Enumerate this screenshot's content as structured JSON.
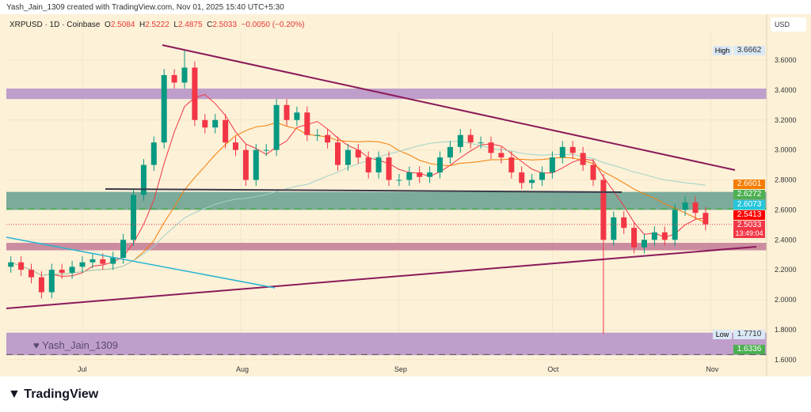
{
  "header": {
    "credit": "Yash_Jain_1309 created with TradingView.com, Nov 01, 2025 15:40 UTC+5:30"
  },
  "legend": {
    "symbol": "XRPUSD · 1D · Coinbase",
    "o_label": "O",
    "o": "2.5084",
    "h_label": "H",
    "h": "2.5222",
    "l_label": "L",
    "l": "2.4875",
    "c_label": "C",
    "c": "2.5033",
    "change": "−0.0050 (−0.20%)"
  },
  "currency": "USD",
  "watermark": "Yash_Jain_1309",
  "brand": "TradingView",
  "price_tags": {
    "high_label": "High",
    "high": "3.6662",
    "low_label": "Low",
    "low": "1.7710",
    "t1": "2.6601",
    "t2": "2.6272",
    "t3": "2.6073",
    "t4": "2.5413",
    "last": "2.5033",
    "countdown": "13:49:04",
    "bottom": "1.6336"
  },
  "colors": {
    "up": "#089981",
    "down": "#f23645",
    "orange": "#f57c00",
    "green": "#4caf50",
    "cyan": "#26c6da",
    "red": "#ff0000"
  },
  "chart_data": {
    "type": "candlestick",
    "ylim": [
      1.6,
      3.75
    ],
    "y_ticks": [
      "3.6000",
      "3.4000",
      "3.2000",
      "3.0000",
      "2.8000",
      "2.6000",
      "2.4000",
      "2.2000",
      "2.0000",
      "1.8000",
      "1.6000"
    ],
    "x_ticks": [
      "Jul",
      "Aug",
      "Sep",
      "Oct",
      "Nov"
    ],
    "grid": true,
    "x_start": "2025-06-17",
    "step_days": 2,
    "closes": [
      2.25,
      2.2,
      2.15,
      2.05,
      2.2,
      2.18,
      2.22,
      2.25,
      2.27,
      2.24,
      2.28,
      2.4,
      2.7,
      2.9,
      3.05,
      3.5,
      3.45,
      3.55,
      3.2,
      3.15,
      3.2,
      3.05,
      3.0,
      2.8,
      3.0,
      3.0,
      3.3,
      3.2,
      3.25,
      3.1,
      3.1,
      3.05,
      2.9,
      3.0,
      2.95,
      2.85,
      2.95,
      2.8,
      2.8,
      2.85,
      2.82,
      2.85,
      2.95,
      3.02,
      3.1,
      3.05,
      3.05,
      2.98,
      2.95,
      2.85,
      2.78,
      2.8,
      2.85,
      2.95,
      3.02,
      2.98,
      2.9,
      2.8,
      2.4,
      2.55,
      2.48,
      2.35,
      2.4,
      2.45,
      2.4,
      2.6,
      2.65,
      2.58,
      2.5033
    ],
    "zones": [
      [
        3.34,
        3.41
      ],
      [
        2.6,
        2.72
      ],
      [
        2.33,
        2.38
      ],
      [
        1.63,
        1.78
      ]
    ]
  }
}
